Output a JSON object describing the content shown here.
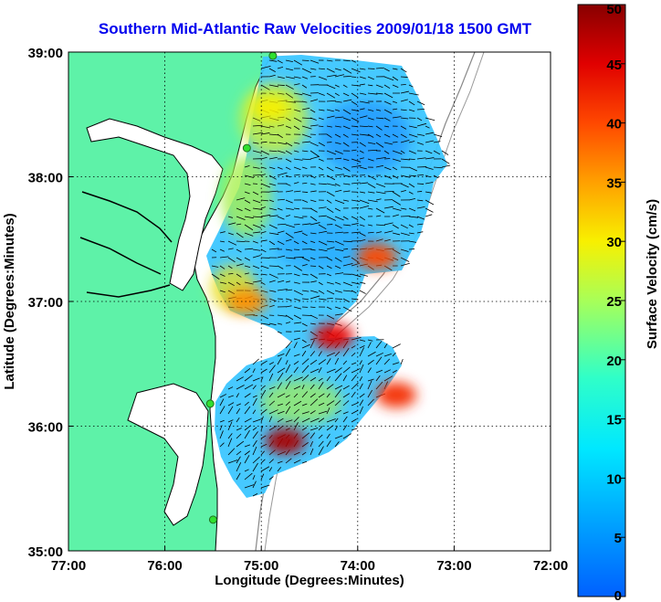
{
  "chart_data": {
    "type": "heatmap",
    "title": "Southern Mid-Atlantic Raw Velocities 2009/01/18 1500 GMT",
    "xlabel": "Longitude (Degrees:Minutes)",
    "ylabel": "Latitude (Degrees:Minutes)",
    "xlim": [
      -77,
      -72
    ],
    "ylim": [
      35,
      39
    ],
    "x_ticks": [
      {
        "value": -77,
        "label": "77:00"
      },
      {
        "value": -76,
        "label": "76:00"
      },
      {
        "value": -75,
        "label": "75:00"
      },
      {
        "value": -74,
        "label": "74:00"
      },
      {
        "value": -73,
        "label": "73:00"
      },
      {
        "value": -72,
        "label": "72:00"
      }
    ],
    "y_ticks": [
      {
        "value": 35,
        "label": "35:00"
      },
      {
        "value": 36,
        "label": "36:00"
      },
      {
        "value": 37,
        "label": "37:00"
      },
      {
        "value": 38,
        "label": "38:00"
      },
      {
        "value": 39,
        "label": "39:00"
      }
    ],
    "grid": true,
    "colorbar": {
      "label": "Surface Velocity (cm/s)",
      "range": [
        0,
        50
      ],
      "ticks": [
        0,
        5,
        10,
        15,
        20,
        25,
        30,
        35,
        40,
        45,
        50
      ],
      "colormap": "jet"
    },
    "stations": [
      {
        "lon": -74.88,
        "lat": 38.97
      },
      {
        "lon": -75.15,
        "lat": 38.23
      },
      {
        "lon": -75.53,
        "lat": 36.18
      },
      {
        "lon": -75.5,
        "lat": 35.25
      }
    ],
    "velocity_field": {
      "units": "cm/s",
      "hotspots": [
        {
          "lon": -75.15,
          "lat": 37.0,
          "speed": 36
        },
        {
          "lon": -74.25,
          "lat": 36.72,
          "speed": 45
        },
        {
          "lon": -73.8,
          "lat": 37.36,
          "speed": 40
        },
        {
          "lon": -74.75,
          "lat": 35.88,
          "speed": 48
        },
        {
          "lon": -73.6,
          "lat": 36.25,
          "speed": 42
        },
        {
          "lon": -74.9,
          "lat": 38.55,
          "speed": 30
        }
      ]
    }
  }
}
